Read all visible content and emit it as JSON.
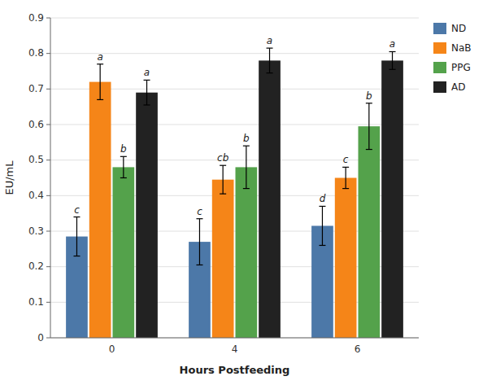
{
  "chart_data": {
    "type": "bar",
    "categories": [
      "0",
      "4",
      "6"
    ],
    "series": [
      {
        "name": "ND",
        "color": "#4c78a8",
        "values": [
          0.285,
          0.27,
          0.315
        ],
        "errors": [
          0.055,
          0.065,
          0.055
        ],
        "annotations": [
          "c",
          "c",
          "d"
        ]
      },
      {
        "name": "NaB",
        "color": "#f58518",
        "values": [
          0.72,
          0.445,
          0.45
        ],
        "errors": [
          0.05,
          0.04,
          0.03
        ],
        "annotations": [
          "a",
          "cb",
          "c"
        ]
      },
      {
        "name": "PPG",
        "color": "#54a24b",
        "values": [
          0.48,
          0.48,
          0.595
        ],
        "errors": [
          0.03,
          0.06,
          0.065
        ],
        "annotations": [
          "b",
          "b",
          "b"
        ]
      },
      {
        "name": "AD",
        "color": "#222222",
        "values": [
          0.69,
          0.78,
          0.78
        ],
        "errors": [
          0.035,
          0.035,
          0.025
        ],
        "annotations": [
          "a",
          "a",
          "a"
        ]
      }
    ],
    "xlabel": "Hours Postfeeding",
    "ylabel": "EU/mL",
    "ylim": [
      0,
      0.9
    ],
    "yticks": [
      0,
      0.1,
      0.2,
      0.3,
      0.4,
      0.5,
      0.6,
      0.7,
      0.8,
      0.9
    ],
    "grid": true,
    "legend": "right"
  }
}
